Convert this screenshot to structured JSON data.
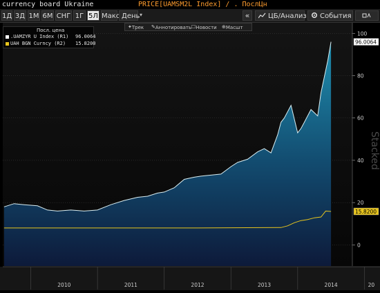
{
  "header": {
    "title_left": "currency board Ukraine",
    "title_mid": "PRICE[UAMSM2L Index] / . ПослЦн"
  },
  "toolbar": {
    "ranges": [
      "1Д",
      "3Д",
      "1М",
      "6М",
      "СНГ",
      "1Г",
      "5Л",
      "Макс"
    ],
    "active_range": "5Л",
    "period": "День",
    "collapse": "«",
    "btn_analysis": "ЦБ/Анализ",
    "btn_events": "События"
  },
  "annotation_bar": [
    "Трек",
    "Аннотировать",
    "Новости",
    "Масшт"
  ],
  "legend": {
    "header": "Посл. цена",
    "items": [
      {
        "label": ".UAMZYR U Index (R1)",
        "value": "96.0064",
        "color": "#ffffff"
      },
      {
        "label": "UAH BGN Curncy (R2)",
        "value": "15.8200",
        "color": "#e8c51d"
      }
    ]
  },
  "watermark": "Stacked",
  "colors": {
    "area_top": "#1f8fb0",
    "area_bottom": "#0d1a3a",
    "line_main": "#d9eef2",
    "line_fx": "#e8c51d",
    "background": "#000000"
  },
  "chart_data": {
    "type": "area",
    "x_ticks": [
      "2010",
      "2011",
      "2012",
      "2013",
      "2014",
      "20"
    ],
    "y_ticks": [
      "100",
      "80",
      "60",
      "40",
      "20",
      "0"
    ],
    "ylim": [
      -10,
      105
    ],
    "series": [
      {
        "name": ".UAMZYR U Index (R1)",
        "type": "area",
        "last_value": "96.0064",
        "x": [
          2009.6,
          2009.75,
          2009.9,
          2010.1,
          2010.25,
          2010.4,
          2010.6,
          2010.8,
          2011.0,
          2011.2,
          2011.4,
          2011.6,
          2011.75,
          2011.9,
          2012.0,
          2012.15,
          2012.3,
          2012.45,
          2012.55,
          2012.7,
          2012.85,
          2013.0,
          2013.1,
          2013.25,
          2013.4,
          2013.5,
          2013.6,
          2013.7,
          2013.75,
          2013.8,
          2013.9,
          2014.0,
          2014.05,
          2014.1,
          2014.2,
          2014.3,
          2014.35,
          2014.45,
          2014.5
        ],
        "values": [
          18.0,
          19.5,
          19.0,
          18.5,
          16.5,
          16.0,
          16.5,
          16.0,
          16.5,
          19.0,
          21.0,
          22.5,
          23.0,
          24.5,
          25.0,
          27.0,
          31.0,
          32.0,
          32.5,
          33.0,
          33.5,
          37.0,
          39.0,
          40.5,
          44.0,
          45.5,
          43.5,
          52.0,
          58.0,
          60.0,
          66.0,
          53.0,
          55.0,
          58.0,
          64.0,
          61.0,
          72.0,
          87.0,
          96.0064
        ]
      },
      {
        "name": "UAH BGN Curncy (R2)",
        "type": "line",
        "last_value": "15.8200",
        "x": [
          2009.6,
          2010.0,
          2010.5,
          2011.0,
          2011.5,
          2012.0,
          2012.5,
          2013.0,
          2013.5,
          2013.75,
          2013.85,
          2013.95,
          2014.05,
          2014.15,
          2014.25,
          2014.35,
          2014.42,
          2014.5
        ],
        "values": [
          8.0,
          8.0,
          8.0,
          8.0,
          8.0,
          8.0,
          8.0,
          8.1,
          8.15,
          8.2,
          9.0,
          10.5,
          11.5,
          12.0,
          12.8,
          13.2,
          16.0,
          15.82
        ]
      }
    ]
  }
}
